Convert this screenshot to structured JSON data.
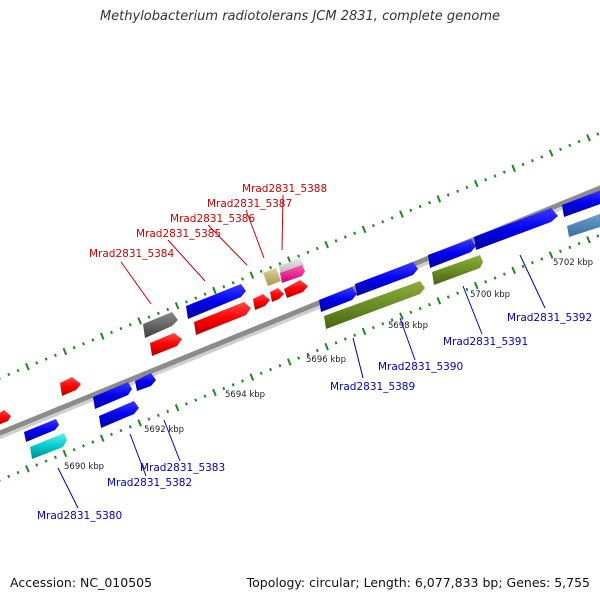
{
  "title": "Methylobacterium radiotolerans JCM 2831, complete genome",
  "accession_text": "Accession: NC_010505",
  "summary_text": "Topology: circular; Length: 6,077,833 bp; Genes: 5,755",
  "colors": {
    "forward_strand": "#0000ee",
    "reverse_strand": "#ff0000",
    "forward_label": "#0000bb",
    "reverse_label": "#cc0000",
    "backbone": "#8c8c8c",
    "tick": "#1a8a1a"
  },
  "kbp_labels": [
    "5690 kbp",
    "5692 kbp",
    "5694 kbp",
    "5696 kbp",
    "5698 kbp",
    "5700 kbp",
    "5702 kbp"
  ],
  "gene_labels": {
    "reverse": [
      "Mrad2831_5384",
      "Mrad2831_5385",
      "Mrad2831_5386",
      "Mrad2831_5387",
      "Mrad2831_5388"
    ],
    "forward": [
      "Mrad2831_5380",
      "Mrad2831_5382",
      "Mrad2831_5383",
      "Mrad2831_5389",
      "Mrad2831_5390",
      "Mrad2831_5391",
      "Mrad2831_5392"
    ]
  }
}
